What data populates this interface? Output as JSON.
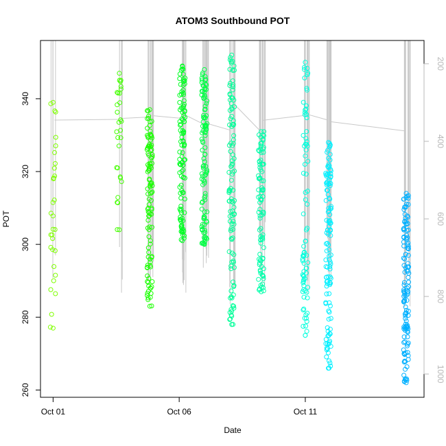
{
  "chart_data": {
    "type": "scatter",
    "title": "ATOM3 Southbound POT",
    "xlabel": "Date",
    "ylabel": "POT",
    "x_ticks": [
      {
        "date": "2023-10-01",
        "label": "Oct 01"
      },
      {
        "date": "2023-10-06",
        "label": "Oct 06"
      },
      {
        "date": "2023-10-11",
        "label": "Oct 11"
      }
    ],
    "xlim": [
      "2023-09-30T12:00",
      "2023-10-15T17:00"
    ],
    "ylim": [
      258,
      356
    ],
    "y_ticks": [
      260,
      280,
      300,
      320,
      340
    ],
    "right_axis": {
      "ylim": [
        1060,
        140
      ],
      "ticks": [
        200,
        400,
        600,
        800,
        1000
      ],
      "color": "#b8b8b8",
      "description": "pressure track (grey line)"
    },
    "grid": false,
    "marker": "open-circle",
    "color_gradient": [
      "#7fff00",
      "#00ff00",
      "#00ffcc",
      "#00ffff",
      "#00b0ff"
    ],
    "profiles": [
      {
        "t": "2023-10-01T00:00",
        "pot_min": 277,
        "pot_max": 339,
        "n": 30,
        "color": "#7fff00",
        "pres_top": 150,
        "pres_bottom": 790
      },
      {
        "t": "2023-10-03T15:00",
        "pot_min": 304,
        "pot_max": 347,
        "n": 28,
        "color": "#44ff00",
        "pres_top": 150,
        "pres_bottom": 800
      },
      {
        "t": "2023-10-04T20:00",
        "pot_min": 283,
        "pot_max": 337,
        "n": 110,
        "color": "#1aff00",
        "pres_top": 150,
        "pres_bottom": 810
      },
      {
        "t": "2023-10-06T03:00",
        "pot_min": 301,
        "pot_max": 349,
        "n": 110,
        "color": "#00ff22",
        "pres_top": 150,
        "pres_bottom": 800
      },
      {
        "t": "2023-10-07T00:00",
        "pot_min": 300,
        "pot_max": 348,
        "n": 110,
        "color": "#00ff44",
        "pres_top": 150,
        "pres_bottom": 740
      },
      {
        "t": "2023-10-08T02:00",
        "pot_min": 278,
        "pot_max": 352,
        "n": 110,
        "color": "#00ff99",
        "pres_top": 150,
        "pres_bottom": 820
      },
      {
        "t": "2023-10-09T06:00",
        "pot_min": 287,
        "pot_max": 331,
        "n": 90,
        "color": "#00ffaa",
        "pres_top": 150,
        "pres_bottom": 780
      },
      {
        "t": "2023-10-11T00:00",
        "pot_min": 275,
        "pot_max": 350,
        "n": 80,
        "color": "#00ffdd",
        "pres_top": 150,
        "pres_bottom": 820
      },
      {
        "t": "2023-10-11T22:00",
        "pot_min": 266,
        "pot_max": 328,
        "n": 120,
        "color": "#00f0ff",
        "pres_top": 150,
        "pres_bottom": 780
      },
      {
        "t": "2023-10-15T00:00",
        "pot_min": 262,
        "pot_max": 314,
        "n": 130,
        "color": "#00b0ff",
        "pres_top": 150,
        "pres_bottom": 830
      }
    ]
  }
}
